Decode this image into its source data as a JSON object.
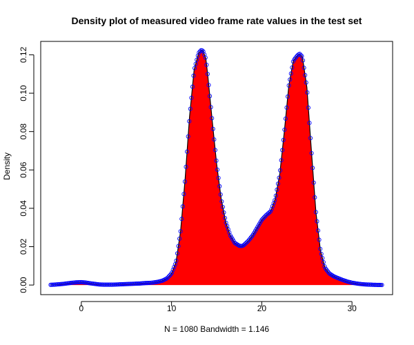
{
  "chart_data": {
    "type": "area",
    "title": "Density plot of measured video frame rate values in the test set",
    "xlabel": "N = 1080   Bandwidth = 1.146",
    "ylabel": "Density",
    "xlim": [
      -4.5,
      34.5
    ],
    "ylim": [
      -0.005,
      0.127
    ],
    "x_ticks": [
      0,
      10,
      20,
      30
    ],
    "y_ticks": [
      0.0,
      0.02,
      0.04,
      0.06,
      0.08,
      0.1,
      0.12
    ],
    "x_tick_labels": [
      "0",
      "10",
      "20",
      "30"
    ],
    "y_tick_labels": [
      "0.00",
      "0.02",
      "0.04",
      "0.06",
      "0.08",
      "0.10",
      "0.12"
    ],
    "colors": {
      "fill": "#ff0000",
      "line": "#000000",
      "points": "#0000ff"
    },
    "grid": false,
    "x": [
      -3.4,
      -3.0,
      -2.5,
      -2.0,
      -1.5,
      -1.0,
      -0.5,
      0.0,
      0.5,
      1.0,
      1.5,
      2.0,
      2.5,
      3.0,
      3.5,
      4.0,
      4.5,
      5.0,
      5.5,
      6.0,
      6.5,
      7.0,
      7.5,
      8.0,
      8.5,
      9.0,
      9.5,
      10.0,
      10.5,
      11.0,
      11.5,
      12.0,
      12.5,
      13.0,
      13.3,
      13.5,
      13.8,
      14.0,
      14.5,
      15.0,
      15.5,
      16.0,
      16.5,
      17.0,
      17.5,
      17.8,
      18.0,
      18.5,
      19.0,
      19.5,
      20.0,
      20.5,
      21.0,
      21.5,
      22.0,
      22.5,
      23.0,
      23.5,
      24.0,
      24.2,
      24.5,
      25.0,
      25.5,
      26.0,
      26.5,
      27.0,
      27.5,
      28.0,
      28.5,
      29.0,
      29.5,
      30.0,
      30.5,
      31.0,
      31.5,
      32.0,
      32.5,
      33.0,
      33.4
    ],
    "y": [
      0.0001,
      0.0002,
      0.0004,
      0.0006,
      0.0009,
      0.0012,
      0.0014,
      0.0015,
      0.0013,
      0.0009,
      0.0006,
      0.0003,
      0.0002,
      0.0002,
      0.0002,
      0.0003,
      0.0004,
      0.0005,
      0.0006,
      0.0007,
      0.0008,
      0.001,
      0.0011,
      0.0013,
      0.0017,
      0.0023,
      0.0035,
      0.006,
      0.012,
      0.028,
      0.055,
      0.088,
      0.112,
      0.121,
      0.1225,
      0.122,
      0.118,
      0.11,
      0.086,
      0.063,
      0.045,
      0.033,
      0.026,
      0.022,
      0.0205,
      0.0203,
      0.0208,
      0.023,
      0.026,
      0.03,
      0.034,
      0.0365,
      0.0385,
      0.045,
      0.058,
      0.08,
      0.104,
      0.117,
      0.12,
      0.1205,
      0.119,
      0.103,
      0.07,
      0.038,
      0.018,
      0.009,
      0.006,
      0.0045,
      0.0035,
      0.0026,
      0.0018,
      0.0012,
      0.0008,
      0.0005,
      0.0003,
      0.0002,
      0.0001,
      5e-05,
      2e-05
    ]
  }
}
